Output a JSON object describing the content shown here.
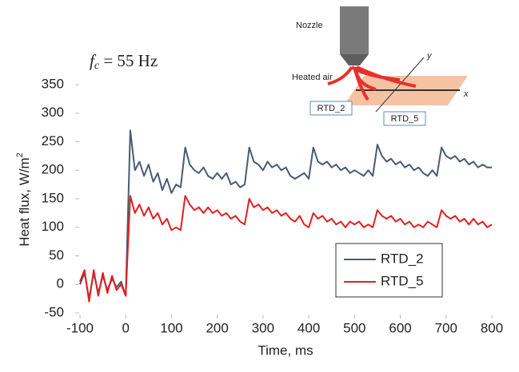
{
  "chart_data": {
    "type": "line",
    "annotation": {
      "symbol": "f",
      "subscript": "c",
      "text": " = 55 Hz"
    },
    "xlabel": "Time, ms",
    "ylabel": "Heat flux, W/m",
    "ylabel_superscript": "2",
    "x": [
      -100,
      -90,
      -80,
      -70,
      -60,
      -50,
      -40,
      -30,
      -20,
      -10,
      0,
      10,
      20,
      30,
      40,
      50,
      60,
      70,
      80,
      90,
      100,
      110,
      120,
      130,
      140,
      150,
      160,
      170,
      180,
      190,
      200,
      210,
      220,
      230,
      240,
      250,
      260,
      270,
      280,
      290,
      300,
      310,
      320,
      330,
      340,
      350,
      360,
      370,
      380,
      390,
      400,
      410,
      420,
      430,
      440,
      450,
      460,
      470,
      480,
      490,
      500,
      510,
      520,
      530,
      540,
      550,
      560,
      570,
      580,
      590,
      600,
      610,
      620,
      630,
      640,
      650,
      660,
      670,
      680,
      690,
      700,
      710,
      720,
      730,
      740,
      750,
      760,
      770,
      780,
      790,
      800
    ],
    "series": [
      {
        "name": "RTD_2",
        "color": "#4a5a73",
        "values": [
          0,
          20,
          -25,
          20,
          -15,
          15,
          -10,
          10,
          -5,
          5,
          -20,
          270,
          200,
          215,
          190,
          210,
          180,
          195,
          165,
          185,
          160,
          175,
          170,
          240,
          210,
          200,
          195,
          205,
          190,
          185,
          195,
          185,
          195,
          175,
          180,
          170,
          175,
          240,
          215,
          210,
          200,
          215,
          205,
          210,
          200,
          205,
          190,
          185,
          190,
          195,
          185,
          240,
          215,
          210,
          215,
          205,
          210,
          200,
          205,
          195,
          200,
          195,
          190,
          200,
          190,
          245,
          225,
          215,
          220,
          210,
          215,
          205,
          210,
          200,
          205,
          195,
          190,
          200,
          190,
          240,
          225,
          220,
          225,
          215,
          220,
          210,
          215,
          205,
          210,
          205,
          205
        ]
      },
      {
        "name": "RTD_5",
        "color": "#e02020",
        "values": [
          5,
          25,
          -30,
          25,
          -20,
          20,
          -15,
          15,
          -10,
          0,
          -20,
          155,
          125,
          140,
          120,
          135,
          115,
          125,
          105,
          115,
          95,
          100,
          95,
          155,
          140,
          130,
          135,
          125,
          135,
          125,
          130,
          120,
          125,
          115,
          120,
          110,
          105,
          150,
          135,
          140,
          130,
          135,
          125,
          130,
          120,
          125,
          115,
          110,
          120,
          105,
          100,
          125,
          115,
          120,
          110,
          115,
          105,
          110,
          100,
          110,
          105,
          110,
          100,
          105,
          100,
          130,
          120,
          115,
          120,
          110,
          115,
          105,
          110,
          100,
          105,
          100,
          110,
          105,
          100,
          130,
          120,
          115,
          120,
          110,
          115,
          105,
          115,
          105,
          110,
          100,
          105
        ]
      }
    ],
    "xlim": [
      -100,
      800
    ],
    "xticks": [
      -100,
      0,
      100,
      200,
      300,
      400,
      500,
      600,
      700,
      800
    ],
    "ylim": [
      -50,
      350
    ],
    "yticks": [
      -50,
      0,
      50,
      100,
      150,
      200,
      250,
      300,
      350
    ],
    "grid": false,
    "legend": "lower right",
    "inset": {
      "nozzle": "Nozzle",
      "heated_air": "Heated air",
      "rtd2": "RTD_2",
      "rtd5": "RTD_5",
      "axis_y": "y",
      "axis_x": "x"
    }
  }
}
